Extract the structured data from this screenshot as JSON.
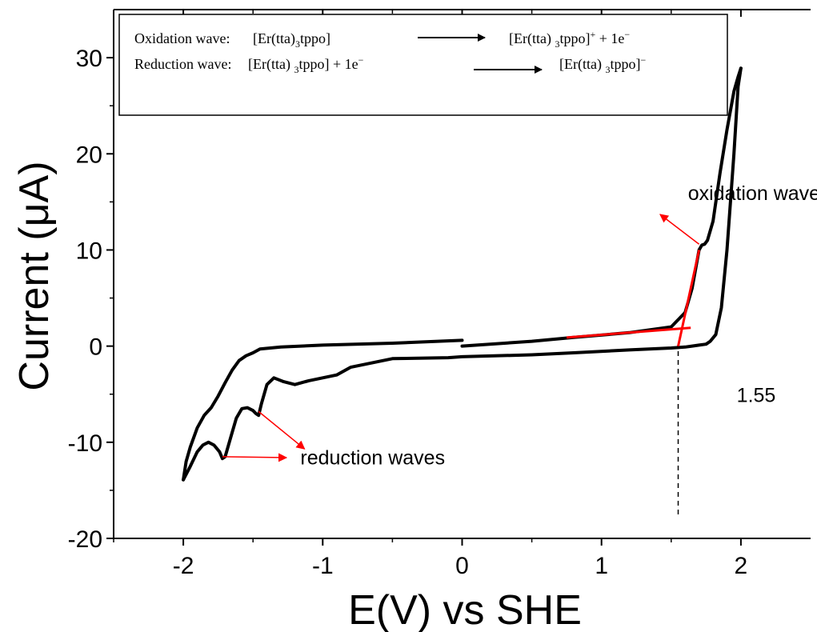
{
  "chart_data": {
    "type": "line",
    "title": "",
    "xlabel": "E(V) vs SHE",
    "ylabel": "Current (μA)",
    "xlim": [
      -2.5,
      2.5
    ],
    "ylim": [
      -20,
      35
    ],
    "x_ticks": [
      {
        "value": -2,
        "label": "-2"
      },
      {
        "value": -1,
        "label": "-1"
      },
      {
        "value": 0,
        "label": "0"
      },
      {
        "value": 1,
        "label": "1"
      },
      {
        "value": 2,
        "label": "2"
      }
    ],
    "y_ticks": [
      {
        "value": -20,
        "label": "-20"
      },
      {
        "value": -10,
        "label": "-10"
      },
      {
        "value": 0,
        "label": "0"
      },
      {
        "value": 10,
        "label": "10"
      },
      {
        "value": 20,
        "label": "20"
      },
      {
        "value": 30,
        "label": "30"
      }
    ],
    "grid": false,
    "series": [
      {
        "color": "#000000",
        "x": [
          0.0,
          0.5,
          0.8,
          1.2,
          1.5,
          1.6,
          1.65,
          1.7,
          1.72,
          1.74,
          1.76,
          1.8,
          1.85,
          1.9,
          1.95,
          1.98,
          2.0
        ],
        "y": [
          0.0,
          0.5,
          0.9,
          1.4,
          2.0,
          3.5,
          6.0,
          10.0,
          10.5,
          10.6,
          11.0,
          13.0,
          18.0,
          22.5,
          26.5,
          28.0,
          28.9
        ]
      },
      {
        "color": "#000000",
        "x": [
          2.0,
          1.98,
          1.95,
          1.9,
          1.86,
          1.82,
          1.78,
          1.75,
          1.7,
          1.65,
          1.6,
          1.5,
          1.2,
          0.8,
          0.5,
          0.0,
          -0.1,
          -0.5,
          -0.8,
          -0.9,
          -1.1,
          -1.2,
          -1.28,
          -1.35,
          -1.4,
          -1.44,
          -1.46,
          -1.48,
          -1.5,
          -1.54,
          -1.58,
          -1.62,
          -1.66,
          -1.7,
          -1.72,
          -1.74,
          -1.78,
          -1.82,
          -1.86,
          -1.9,
          -1.95,
          -2.0
        ],
        "y": [
          28.9,
          27.0,
          20.0,
          10.0,
          4.0,
          1.2,
          0.5,
          0.2,
          0.1,
          0.0,
          -0.1,
          -0.2,
          -0.4,
          -0.7,
          -0.9,
          -1.1,
          -1.2,
          -1.3,
          -2.2,
          -3.0,
          -3.6,
          -4.0,
          -3.7,
          -3.3,
          -4.0,
          -6.0,
          -7.2,
          -7.0,
          -6.7,
          -6.4,
          -6.5,
          -7.5,
          -9.5,
          -11.5,
          -11.7,
          -11.0,
          -10.3,
          -10.0,
          -10.3,
          -11.0,
          -12.5,
          -13.9
        ]
      },
      {
        "color": "#000000",
        "x": [
          -2.0,
          -1.98,
          -1.95,
          -1.9,
          -1.85,
          -1.8,
          -1.75,
          -1.7,
          -1.65,
          -1.6,
          -1.55,
          -1.5,
          -1.45,
          -1.3,
          -1.0,
          -0.5,
          0.0
        ],
        "y": [
          -13.9,
          -12.0,
          -10.5,
          -8.5,
          -7.2,
          -6.4,
          -5.2,
          -3.8,
          -2.5,
          -1.5,
          -1.0,
          -0.7,
          -0.3,
          -0.1,
          0.1,
          0.3,
          0.6
        ]
      }
    ],
    "overlays": [
      {
        "name": "oxidation-onset-tangent-steep",
        "color": "#ff0000",
        "x": [
          1.55,
          1.7
        ],
        "y": [
          0.0,
          10.0
        ]
      },
      {
        "name": "oxidation-onset-tangent-baseline",
        "color": "#ff0000",
        "x": [
          0.75,
          1.64
        ],
        "y": [
          0.9,
          1.9
        ]
      }
    ],
    "reference_line": {
      "x": 1.55,
      "y_from": -17.5,
      "y_to": 0.0,
      "style": "dashed"
    },
    "annotations": [
      {
        "id": "oxidation-wave",
        "text": "oxidation wave",
        "x": 1.62,
        "y": 15.2,
        "arrow_from": [
          1.7,
          10.6
        ],
        "arrow_to": [
          1.42,
          13.7
        ]
      },
      {
        "id": "reduction-waves",
        "text": "reduction waves",
        "x": -1.16,
        "y": -12.3,
        "arrows": [
          {
            "from": [
              -1.46,
              -6.8
            ],
            "to": [
              -1.13,
              -10.7
            ]
          },
          {
            "from": [
              -1.72,
              -11.5
            ],
            "to": [
              -1.26,
              -11.6
            ]
          }
        ]
      },
      {
        "id": "onset-value",
        "text": "1.55",
        "x": 1.97,
        "y": -5.8
      }
    ],
    "colors": {
      "curve": "#000000",
      "annotation": "#ff0000"
    }
  },
  "legend_box": {
    "oxidation": {
      "label": "Oxidation wave:",
      "reactant": "[Er(tta)",
      "reactant_sub": "3",
      "reactant_end": "tppo]",
      "product": "[Er(tta) ",
      "product_sub": "3",
      "product_end": "tppo]",
      "product_sup": "+",
      "product_tail": " + 1e",
      "product_tail_sup": "−"
    },
    "reduction": {
      "label": "Reduction wave:",
      "reactant": "[Er(tta) ",
      "reactant_sub": "3",
      "reactant_end": "tppo] +  1e",
      "reactant_sup": "−",
      "product": "[Er(tta) ",
      "product_sub": "3",
      "product_end": "tppo]",
      "product_sup": "−"
    }
  }
}
